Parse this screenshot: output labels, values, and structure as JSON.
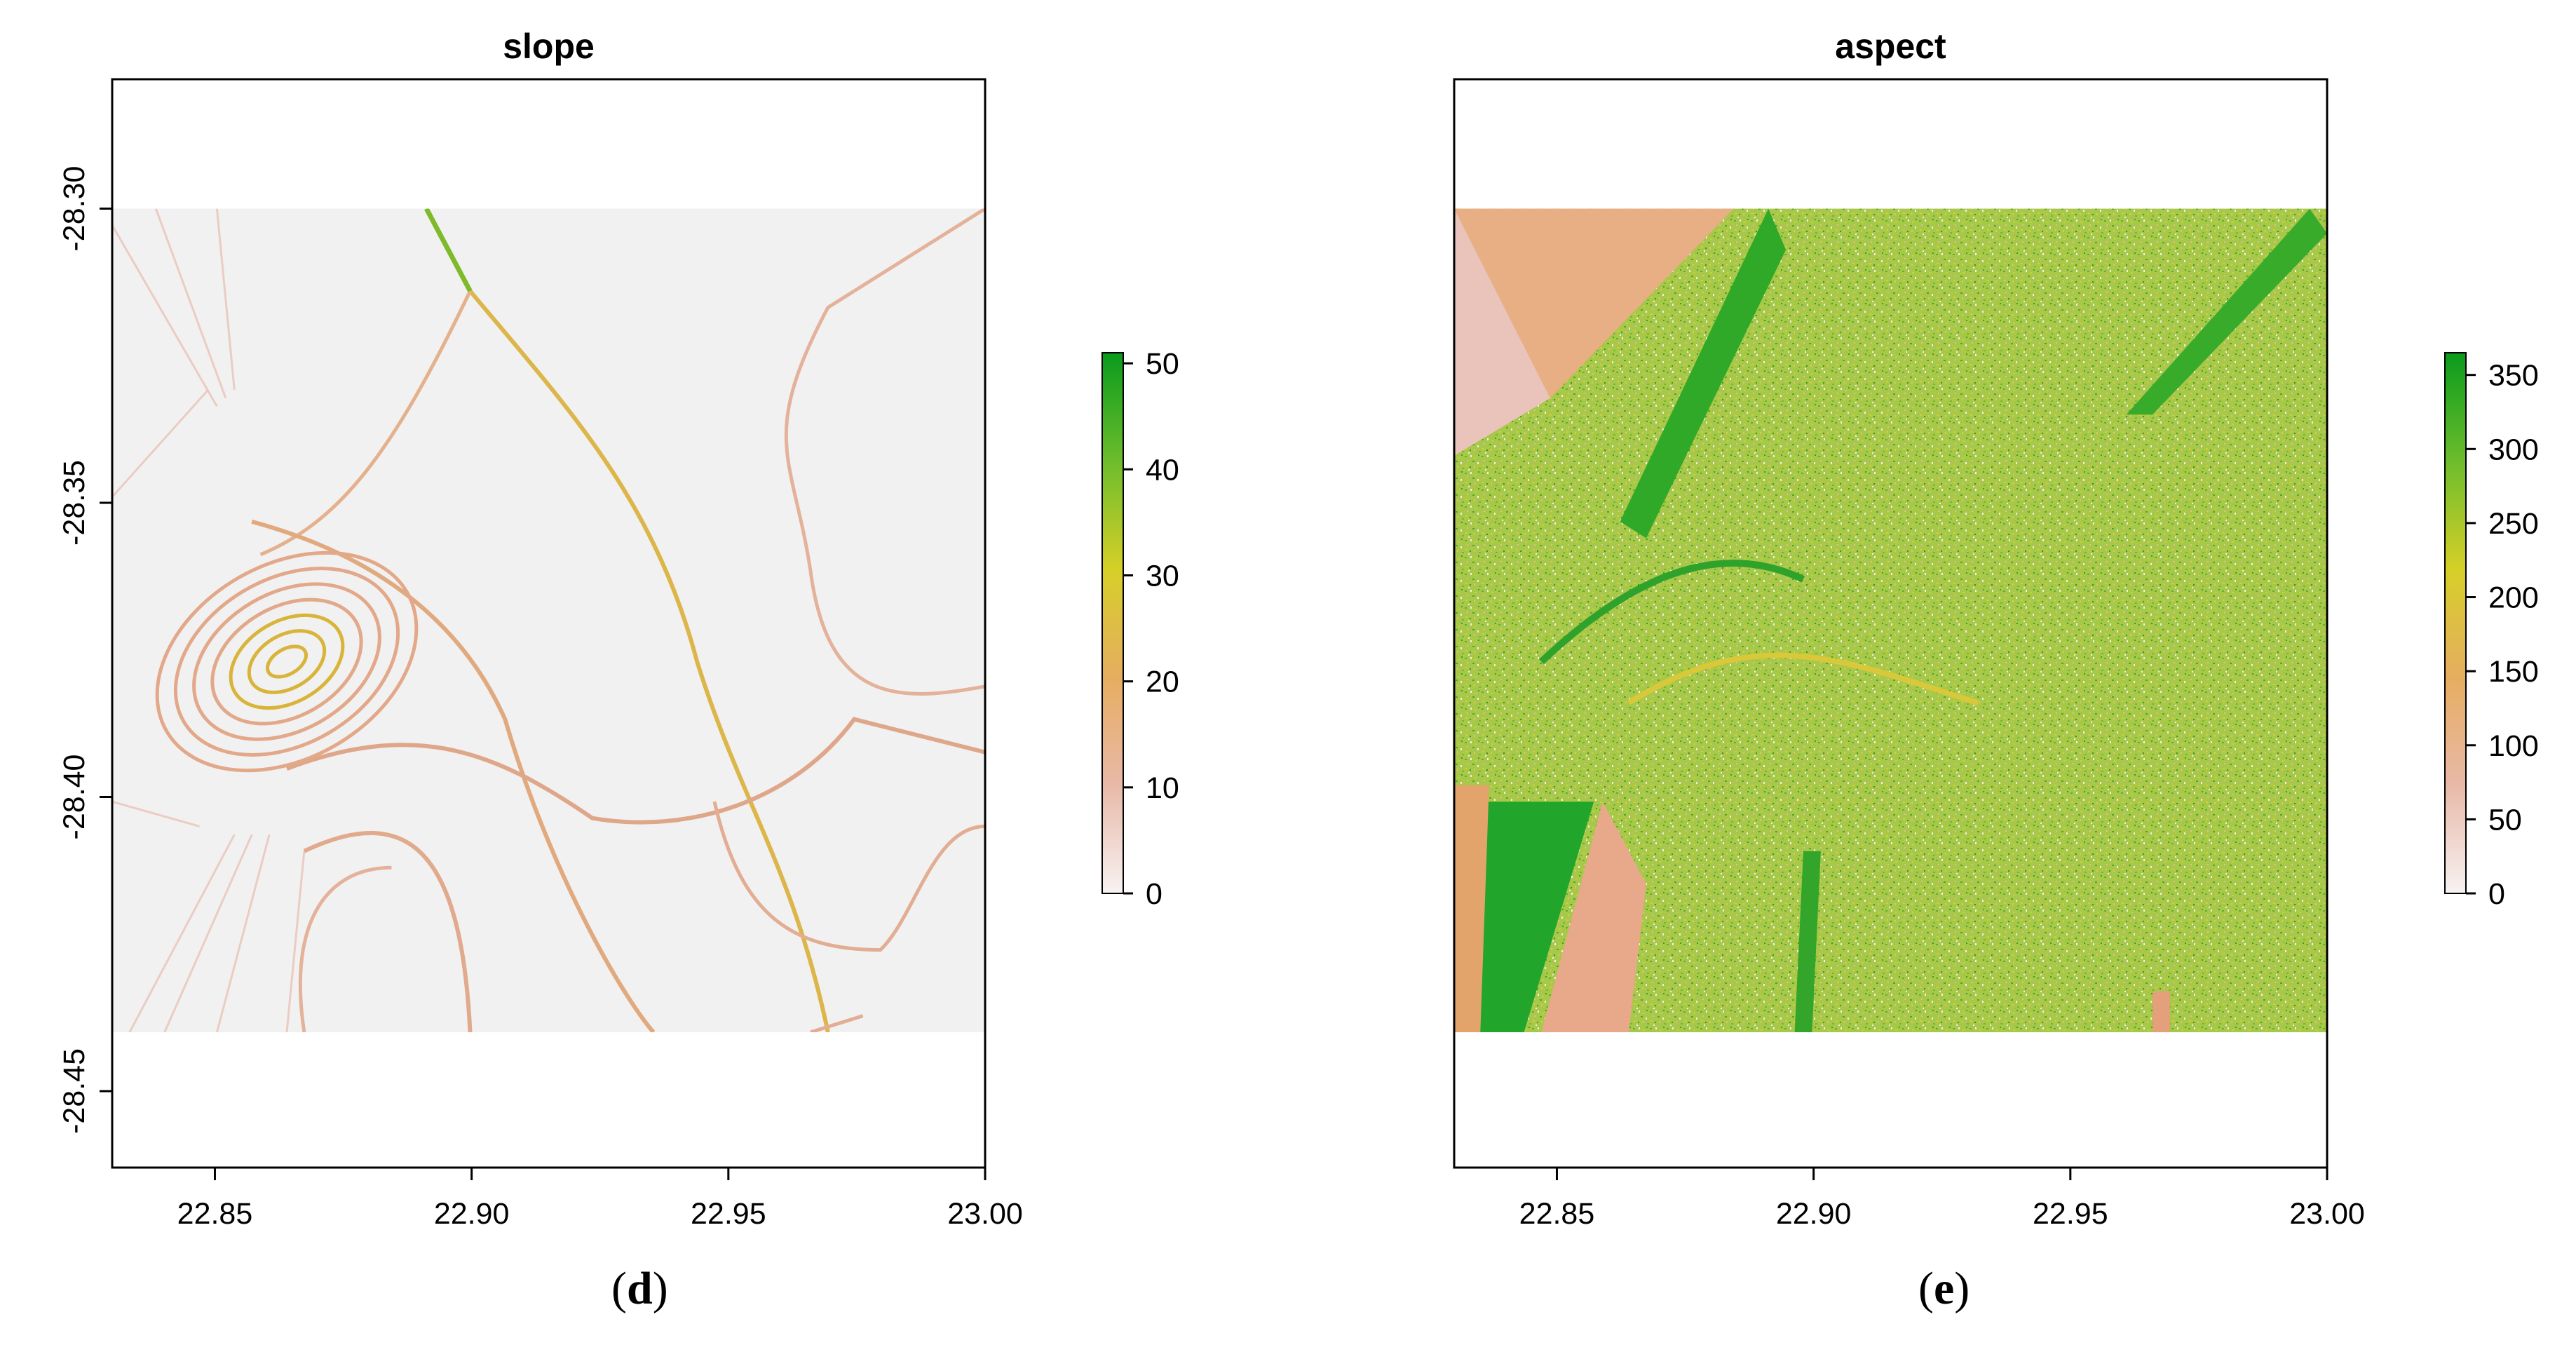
{
  "chart_data": [
    {
      "type": "heatmap",
      "title": "slope",
      "xlabel": "",
      "ylabel": "",
      "xlim": [
        22.83,
        23.0
      ],
      "ylim": [
        -28.463,
        -28.278
      ],
      "raster_extent": {
        "x": [
          22.83,
          23.0
        ],
        "y": [
          -28.44,
          -28.3
        ]
      },
      "x_ticks": [
        22.85,
        22.9,
        22.95,
        23.0
      ],
      "x_tick_labels": [
        "22.85",
        "22.90",
        "22.95",
        "23.00"
      ],
      "y_ticks": [
        -28.3,
        -28.35,
        -28.4,
        -28.45
      ],
      "y_tick_labels": [
        "-28.30",
        "-28.35",
        "-28.40",
        "-28.45"
      ],
      "colorbar": {
        "min": 0,
        "max": 51,
        "ticks": [
          0,
          10,
          20,
          30,
          40,
          50
        ],
        "tick_labels": [
          "0",
          "10",
          "20",
          "30",
          "40",
          "50"
        ]
      },
      "colors": {
        "low": "#f2f2f2",
        "mid_low": "#e9b9a6",
        "mid": "#e8b55a",
        "mid_high": "#d8d02a",
        "high": "#0a9e1a",
        "background": "#f1f1f1"
      },
      "caption_label": "d"
    },
    {
      "type": "heatmap",
      "title": "aspect",
      "xlabel": "",
      "ylabel": "",
      "xlim": [
        22.83,
        23.0
      ],
      "ylim": [
        -28.463,
        -28.278
      ],
      "raster_extent": {
        "x": [
          22.83,
          23.0
        ],
        "y": [
          -28.44,
          -28.3
        ]
      },
      "x_ticks": [
        22.85,
        22.9,
        22.95,
        23.0
      ],
      "x_tick_labels": [
        "22.85",
        "22.90",
        "22.95",
        "23.00"
      ],
      "y_ticks": [],
      "y_tick_labels": [],
      "colorbar": {
        "min": 0,
        "max": 365,
        "ticks": [
          0,
          50,
          100,
          150,
          200,
          250,
          300,
          350
        ],
        "tick_labels": [
          "0",
          "50",
          "100",
          "150",
          "200",
          "250",
          "300",
          "350"
        ]
      },
      "colors": {
        "low": "#f2f2f2",
        "mid_low": "#e9b9a6",
        "mid": "#e8b55a",
        "mid_high": "#d8d02a",
        "high": "#0a9e1a",
        "background": "#a3c848"
      },
      "caption_label": "e"
    }
  ],
  "captions": {
    "d": {
      "open": "(",
      "letter": "d",
      "close": ")"
    },
    "e": {
      "open": "(",
      "letter": "e",
      "close": ")"
    }
  }
}
